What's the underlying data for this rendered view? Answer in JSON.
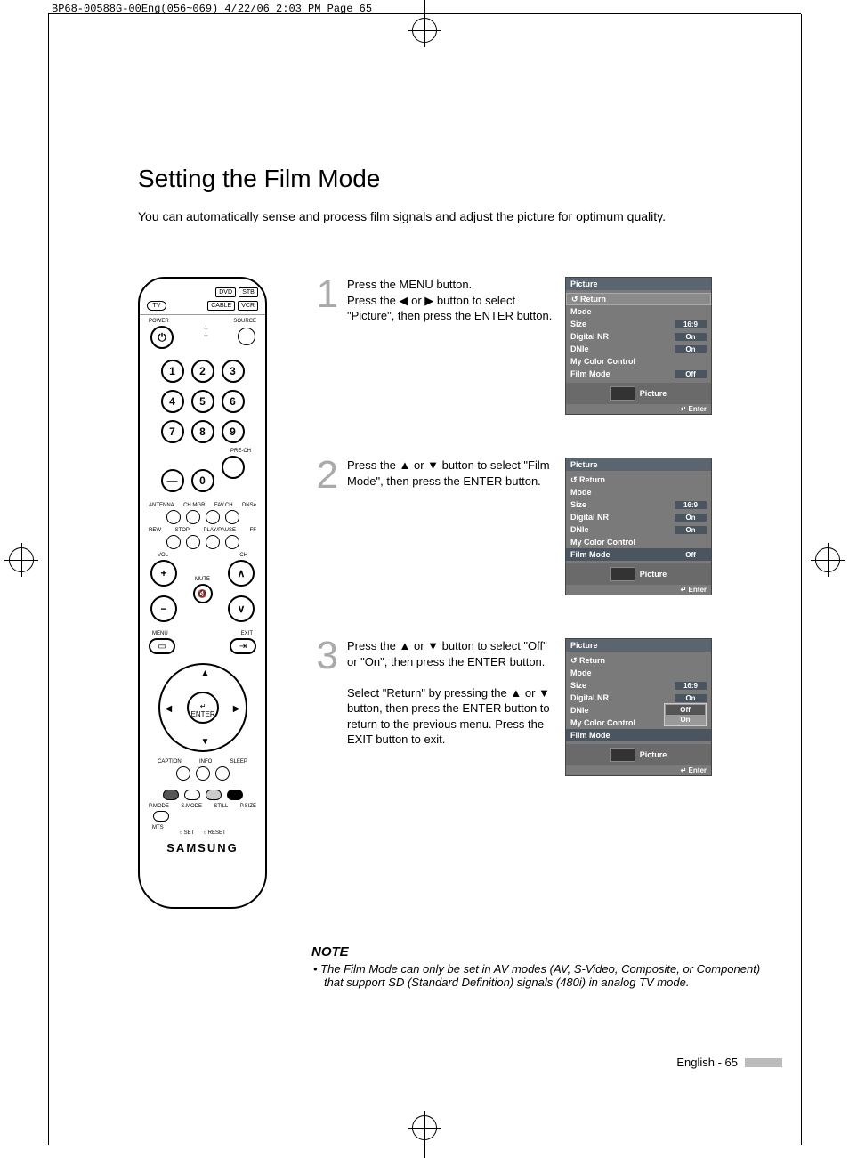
{
  "header": "BP68-00588G-00Eng(056~069)  4/22/06  2:03 PM  Page 65",
  "title": "Setting the Film Mode",
  "intro": "You can automatically sense and process film signals and adjust the picture for optimum quality.",
  "remote": {
    "top_chips": [
      "DVD",
      "STB"
    ],
    "tv_chip": "TV",
    "cable_vcr": [
      "CABLE",
      "VCR"
    ],
    "power": "POWER",
    "source": "SOURCE",
    "row1": [
      "1",
      "2",
      "3"
    ],
    "row2": [
      "4",
      "5",
      "6"
    ],
    "row3": [
      "7",
      "8",
      "9"
    ],
    "dash": "—",
    "zero": "0",
    "prech": "PRE-CH",
    "row_labels1": [
      "ANTENNA",
      "CH MGR",
      "FAV.CH",
      "DNSe"
    ],
    "row_labels2": [
      "REW",
      "STOP",
      "PLAY/PAUSE",
      "FF"
    ],
    "vol": "VOL",
    "ch": "CH",
    "mute": "MUTE",
    "menu": "MENU",
    "exit": "EXIT",
    "enter": "ENTER",
    "row_labels3": [
      "CAPTION",
      "INFO",
      "SLEEP"
    ],
    "row_labels4": [
      "P.MODE",
      "S.MODE",
      "STILL",
      "P.SIZE"
    ],
    "mts": "MTS",
    "set_reset": [
      "○ SET",
      "○ RESET"
    ],
    "brand": "SAMSUNG"
  },
  "steps": [
    {
      "num": "1",
      "text": "Press the MENU button.\nPress the ◀ or ▶ button to select \"Picture\", then press  the ENTER button.",
      "osd": {
        "title": "Picture",
        "highlight": "return",
        "rows": [
          {
            "label": "↺ Return",
            "val": ""
          },
          {
            "label": "Mode",
            "val": ""
          },
          {
            "label": "Size",
            "val": "16:9"
          },
          {
            "label": "Digital NR",
            "val": "On"
          },
          {
            "label": "DNIe",
            "val": "On"
          },
          {
            "label": "My Color Control",
            "val": ""
          },
          {
            "label": "Film Mode",
            "val": "Off"
          }
        ],
        "footer": "Picture",
        "enter": "↵ Enter"
      }
    },
    {
      "num": "2",
      "text": "Press the ▲ or ▼ button to select \"Film Mode\", then press the ENTER button.",
      "osd": {
        "title": "Picture",
        "highlight": "filmmode",
        "rows": [
          {
            "label": "↺ Return",
            "val": ""
          },
          {
            "label": "Mode",
            "val": ""
          },
          {
            "label": "Size",
            "val": "16:9"
          },
          {
            "label": "Digital NR",
            "val": "On"
          },
          {
            "label": "DNIe",
            "val": "On"
          },
          {
            "label": "My Color Control",
            "val": ""
          },
          {
            "label": "Film Mode",
            "val": "Off"
          }
        ],
        "footer": "Picture",
        "enter": "↵ Enter"
      }
    },
    {
      "num": "3",
      "text": "Press the ▲ or ▼ button to select \"Off\" or \"On\", then press the ENTER button.\n\nSelect \"Return\" by pressing the ▲ or ▼ button, then press the ENTER button to return to the previous menu. Press the EXIT button to exit.",
      "osd": {
        "title": "Picture",
        "highlight": "popup",
        "rows": [
          {
            "label": "↺ Return",
            "val": ""
          },
          {
            "label": "Mode",
            "val": ""
          },
          {
            "label": "Size",
            "val": "16:9"
          },
          {
            "label": "Digital NR",
            "val": "On"
          },
          {
            "label": "DNIe",
            "val": ""
          },
          {
            "label": "My Color Control",
            "val": ""
          },
          {
            "label": "Film Mode",
            "val": ""
          }
        ],
        "popup": [
          "Off",
          "On"
        ],
        "popup_sel": 0,
        "footer": "Picture",
        "enter": "↵ Enter"
      }
    }
  ],
  "note": {
    "title": "NOTE",
    "body": "•  The Film Mode can only be set in AV modes (AV, S-Video, Composite, or Component) that support SD (Standard Definition) signals (480i) in analog TV mode."
  },
  "pagenum": "English - 65"
}
